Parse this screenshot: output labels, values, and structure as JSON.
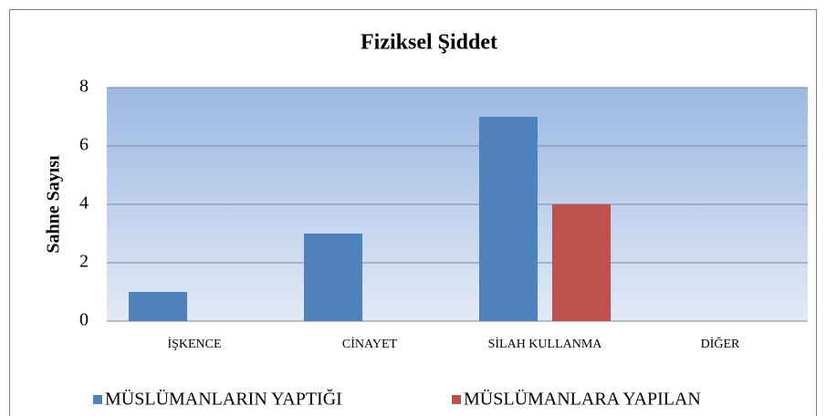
{
  "chart_data": {
    "type": "bar",
    "title": "Fiziksel Şiddet",
    "y_label": "Sahne Sayısı",
    "categories": [
      "İŞKENCE",
      "CİNAYET",
      "SİLAH KULLANMA",
      "DİĞER"
    ],
    "series": [
      {
        "name": "MÜSLÜMANLARIN YAPTIĞI",
        "color": "#4f81bd",
        "values": [
          1,
          3,
          7,
          0
        ]
      },
      {
        "name": "MÜSLÜMANLARA YAPILAN",
        "color": "#c0504d",
        "values": [
          0,
          0,
          4,
          0
        ]
      }
    ],
    "ylim": [
      0,
      8
    ],
    "yticks": [
      0,
      2,
      4,
      6,
      8
    ],
    "grid": true,
    "legend": "bottom"
  }
}
